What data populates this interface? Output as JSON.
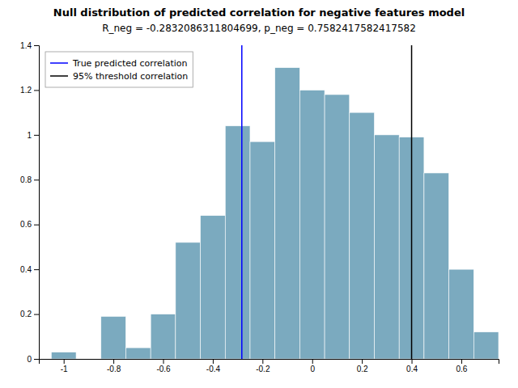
{
  "chart_data": {
    "type": "histogram",
    "title": "Null distribution of predicted correlation for negative features model",
    "subtitle": "R_neg = -0.2832086311804699, p_neg = 0.7582417582417582",
    "bins": [
      -1.05,
      -0.95,
      -0.85,
      -0.75,
      -0.65,
      -0.55,
      -0.45,
      -0.35,
      -0.25,
      -0.15,
      -0.05,
      0.05,
      0.15,
      0.25,
      0.35,
      0.45,
      0.55,
      0.65,
      0.75
    ],
    "values": [
      0.03,
      0.0,
      0.19,
      0.05,
      0.2,
      0.52,
      0.64,
      1.04,
      0.97,
      1.3,
      1.2,
      1.18,
      1.1,
      1.0,
      0.99,
      0.83,
      0.4,
      0.12
    ],
    "color": "#7BAABF",
    "series": [
      {
        "name": "True predicted correlation",
        "type": "vline",
        "color": "blue",
        "x": -0.2832086311804699
      },
      {
        "name": "95% threshold correlation",
        "type": "vline",
        "color": "black",
        "x": 0.4
      }
    ],
    "xlim": [
      -1.1,
      0.75
    ],
    "ylim": [
      0,
      1.4
    ],
    "xticks": [
      -1.0,
      -0.8,
      -0.6,
      -0.4,
      -0.2,
      0.0,
      0.2,
      0.4,
      0.6
    ],
    "yticks": [
      0,
      0.2,
      0.4,
      0.6,
      0.8,
      1.0,
      1.2,
      1.4
    ],
    "legend": "upper left",
    "grid": false
  }
}
